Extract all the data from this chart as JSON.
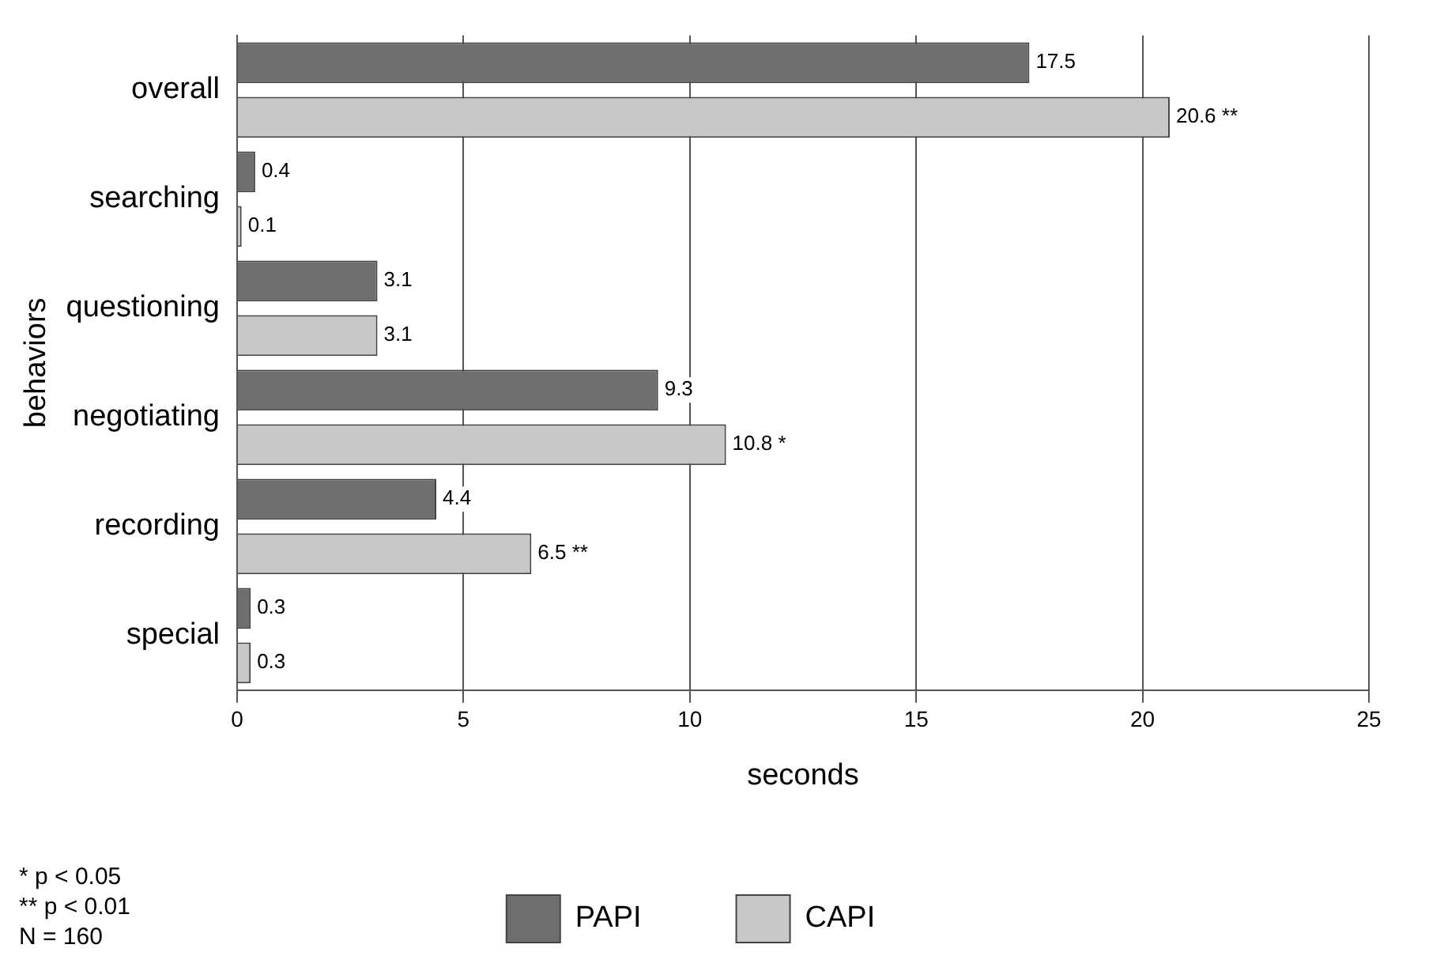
{
  "chart_data": {
    "type": "bar",
    "orientation": "horizontal",
    "xlabel": "seconds",
    "ylabel": "behaviors",
    "categories": [
      "overall",
      "searching",
      "questioning",
      "negotiating",
      "recording",
      "special"
    ],
    "series": [
      {
        "name": "PAPI",
        "color": "#6e6e6e",
        "values": [
          17.5,
          0.4,
          3.1,
          9.3,
          4.4,
          0.3
        ],
        "value_labels": [
          "17.5",
          "0.4",
          "3.1",
          "9.3",
          "4.4",
          "0.3"
        ]
      },
      {
        "name": "CAPI",
        "color": "#c8c8c8",
        "values": [
          20.6,
          0.1,
          3.1,
          10.8,
          6.5,
          0.3
        ],
        "value_labels": [
          "20.6 **",
          "0.1",
          "3.1",
          "10.8 *",
          "6.5 **",
          "0.3"
        ]
      }
    ],
    "xlim": [
      0,
      25
    ],
    "xticks": [
      0,
      5,
      10,
      15,
      20,
      25
    ],
    "grid": "x",
    "legend": "bottom",
    "annotations": [
      "* p < 0.05",
      "** p < 0.01",
      "N = 160"
    ]
  }
}
